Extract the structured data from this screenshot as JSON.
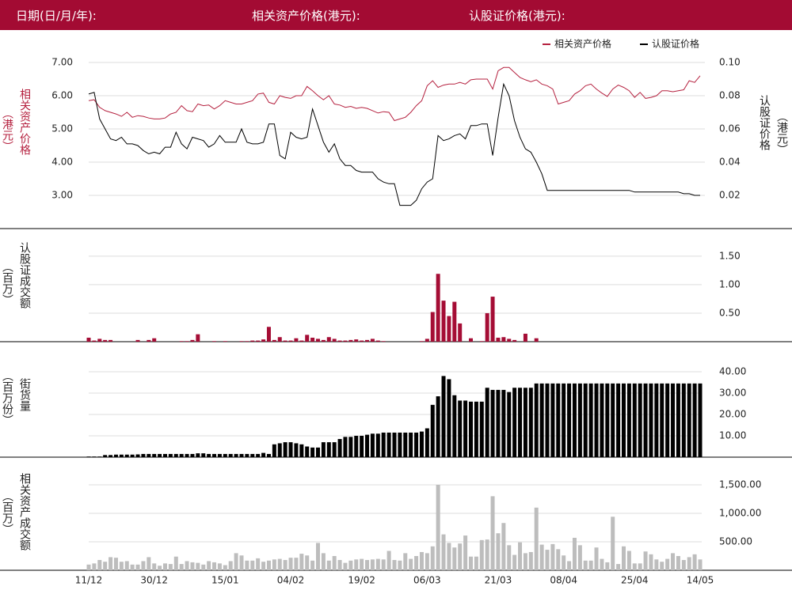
{
  "header": {
    "date_label": "日期(日/月/年):",
    "asset_price_label": "相关资产价格(港元):",
    "warrant_price_label": "认股证价格(港元):"
  },
  "chart_data": [
    {
      "type": "line",
      "y_label": [
        "相关资产价格",
        "（港元）"
      ],
      "y2_label": [
        "认股证价格",
        "（港元）"
      ],
      "series": [
        {
          "name": "相关资产价格",
          "color": "#b5213f",
          "values": [
            5.85,
            5.88,
            5.65,
            5.55,
            5.5,
            5.45,
            5.38,
            5.5,
            5.35,
            5.4,
            5.38,
            5.33,
            5.3,
            5.3,
            5.33,
            5.45,
            5.5,
            5.7,
            5.55,
            5.52,
            5.75,
            5.7,
            5.72,
            5.6,
            5.7,
            5.85,
            5.8,
            5.75,
            5.75,
            5.8,
            5.85,
            6.05,
            6.08,
            5.8,
            5.75,
            6.0,
            5.95,
            5.92,
            6.0,
            6.0,
            6.28,
            6.15,
            6.0,
            5.88,
            6.0,
            5.75,
            5.72,
            5.65,
            5.68,
            5.62,
            5.65,
            5.62,
            5.55,
            5.48,
            5.52,
            5.5,
            5.25,
            5.3,
            5.35,
            5.5,
            5.7,
            5.85,
            6.3,
            6.45,
            6.25,
            6.32,
            6.35,
            6.35,
            6.4,
            6.35,
            6.48,
            6.5,
            6.5,
            6.5,
            6.2,
            6.75,
            6.85,
            6.85,
            6.7,
            6.55,
            6.48,
            6.42,
            6.48,
            6.35,
            6.3,
            6.2,
            5.75,
            5.8,
            5.85,
            6.05,
            6.15,
            6.3,
            6.35,
            6.2,
            6.08,
            5.98,
            6.2,
            6.32,
            6.25,
            6.15,
            5.95,
            6.1,
            5.92,
            5.95,
            6.0,
            6.15,
            6.15,
            6.12,
            6.15,
            6.18,
            6.45,
            6.4,
            6.6
          ]
        },
        {
          "name": "认股证价格",
          "color": "#000000",
          "axis": "y2",
          "values": [
            0.081,
            0.082,
            0.066,
            0.06,
            0.054,
            0.053,
            0.055,
            0.051,
            0.051,
            0.05,
            0.047,
            0.045,
            0.046,
            0.045,
            0.049,
            0.049,
            0.058,
            0.051,
            0.048,
            0.055,
            0.054,
            0.053,
            0.049,
            0.051,
            0.056,
            0.052,
            0.052,
            0.052,
            0.06,
            0.052,
            0.051,
            0.051,
            0.052,
            0.063,
            0.063,
            0.044,
            0.042,
            0.058,
            0.055,
            0.054,
            0.055,
            0.072,
            0.062,
            0.052,
            0.046,
            0.051,
            0.042,
            0.038,
            0.038,
            0.035,
            0.034,
            0.034,
            0.034,
            0.03,
            0.028,
            0.027,
            0.027,
            0.014,
            0.014,
            0.014,
            0.017,
            0.024,
            0.028,
            0.03,
            0.056,
            0.053,
            0.054,
            0.056,
            0.057,
            0.054,
            0.062,
            0.062,
            0.063,
            0.063,
            0.044,
            0.067,
            0.087,
            0.08,
            0.065,
            0.055,
            0.048,
            0.046,
            0.04,
            0.033,
            0.023,
            0.023,
            0.023,
            0.023,
            0.023,
            0.023,
            0.023,
            0.023,
            0.023,
            0.023,
            0.023,
            0.023,
            0.023,
            0.023,
            0.023,
            0.023,
            0.022,
            0.022,
            0.022,
            0.022,
            0.022,
            0.022,
            0.022,
            0.022,
            0.022,
            0.021,
            0.021,
            0.02,
            0.02
          ]
        }
      ],
      "ylim": [
        2.0,
        7.81
      ],
      "yticks": [
        {
          "value": 3,
          "label": "3.00"
        },
        {
          "value": 4,
          "label": "4.00"
        },
        {
          "value": 5,
          "label": "5.00"
        },
        {
          "value": 6,
          "label": "6.00"
        },
        {
          "value": 7,
          "label": "7.00"
        }
      ],
      "y2lim": [
        0,
        0.1162
      ],
      "y2ticks": [
        0.02,
        0.04,
        0.06,
        0.08,
        {
          "value": 0.1,
          "label": "0.10"
        }
      ],
      "grid": true,
      "legend": "top-right"
    },
    {
      "type": "bar",
      "y_label": [
        "认股证成交额",
        "（百万）"
      ],
      "color": "#a50d35",
      "yaxis_side": "right",
      "grid": true,
      "values": [
        0.07,
        0.02,
        0.05,
        0.03,
        0.03,
        0,
        0,
        0,
        0,
        0.03,
        0,
        0.03,
        0.06,
        0,
        0,
        0,
        0,
        0.01,
        0.01,
        0.03,
        0.13,
        0,
        0,
        0.01,
        0,
        0.01,
        0,
        0,
        0.01,
        0.01,
        0.02,
        0.02,
        0.04,
        0.26,
        0.03,
        0.08,
        0.02,
        0.02,
        0.06,
        0.02,
        0.12,
        0.07,
        0.05,
        0.03,
        0.08,
        0.05,
        0.02,
        0.02,
        0.03,
        0.04,
        0.02,
        0.03,
        0.05,
        0.02,
        0.01,
        0,
        0,
        0,
        0,
        0,
        0,
        0.01,
        0.05,
        0.52,
        1.19,
        0.72,
        0.45,
        0.7,
        0.32,
        0,
        0.06,
        0,
        0.01,
        0.5,
        0.79,
        0.07,
        0.08,
        0.05,
        0.03,
        0,
        0.14,
        0,
        0.06,
        0,
        0,
        0,
        0,
        0,
        0,
        0,
        0,
        0,
        0,
        0,
        0,
        0,
        0,
        0,
        0,
        0,
        0,
        0,
        0,
        0,
        0,
        0,
        0,
        0,
        0,
        0,
        0,
        0,
        0
      ],
      "ylim": [
        0,
        1.97
      ],
      "yticks": [
        {
          "value": 0.5,
          "label": "0.50"
        },
        {
          "value": 1,
          "label": "1.00"
        },
        {
          "value": 1.5,
          "label": "1.50"
        }
      ]
    },
    {
      "type": "bar",
      "y_label": [
        "街货量",
        "（百万份）"
      ],
      "color": "#000000",
      "yaxis_side": "right",
      "grid": true,
      "values": [
        0.3,
        0.3,
        0.3,
        1.0,
        1.0,
        1.2,
        1.2,
        1.2,
        1.2,
        1.3,
        1.5,
        1.5,
        1.5,
        1.5,
        1.5,
        1.5,
        1.5,
        1.5,
        1.5,
        1.5,
        1.8,
        1.8,
        1.5,
        1.5,
        1.5,
        1.5,
        1.5,
        1.5,
        1.5,
        1.5,
        1.5,
        1.5,
        2.0,
        1.5,
        6.0,
        6.5,
        7.0,
        7.0,
        6.5,
        6.0,
        5.0,
        4.5,
        4.5,
        7.0,
        7.0,
        7.0,
        8.5,
        9.5,
        9.5,
        10.0,
        10.0,
        10.5,
        11.0,
        11.0,
        11.5,
        11.5,
        11.5,
        11.5,
        11.5,
        11.5,
        11.5,
        12.0,
        13.5,
        24.5,
        28.5,
        38.0,
        36.5,
        29.0,
        26.5,
        26.5,
        26.0,
        26.0,
        26.0,
        32.5,
        31.5,
        31.5,
        31.5,
        30.5,
        32.5,
        32.5,
        32.5,
        32.5,
        34.5,
        34.5,
        34.5,
        34.5,
        34.5,
        34.5,
        34.5,
        34.5,
        34.5,
        34.5,
        34.5,
        34.5,
        34.5,
        34.5,
        34.5,
        34.5,
        34.5,
        34.5,
        34.5,
        34.5,
        34.5,
        34.5,
        34.5,
        34.5,
        34.5,
        34.5,
        34.5,
        34.5,
        34.5,
        34.5,
        34.5
      ],
      "ylim": [
        0,
        53.7
      ],
      "yticks": [
        {
          "value": 10,
          "label": "10.00"
        },
        {
          "value": 20,
          "label": "20.00"
        },
        {
          "value": 30,
          "label": "30.00"
        },
        {
          "value": 40,
          "label": "40.00"
        }
      ]
    },
    {
      "type": "bar",
      "y_label": [
        "相关资产成交额",
        "（百万）"
      ],
      "color": "#bdbdbd",
      "yaxis_side": "right",
      "grid": true,
      "values": [
        100,
        120,
        180,
        150,
        230,
        220,
        150,
        160,
        100,
        100,
        160,
        230,
        120,
        80,
        120,
        110,
        240,
        110,
        160,
        140,
        130,
        100,
        160,
        140,
        120,
        90,
        160,
        300,
        260,
        170,
        170,
        210,
        150,
        170,
        190,
        200,
        180,
        220,
        220,
        290,
        260,
        170,
        480,
        300,
        170,
        250,
        180,
        130,
        170,
        190,
        200,
        180,
        190,
        200,
        190,
        340,
        180,
        170,
        300,
        200,
        250,
        320,
        300,
        420,
        1500,
        630,
        480,
        400,
        470,
        610,
        240,
        240,
        530,
        540,
        1300,
        650,
        830,
        440,
        270,
        490,
        300,
        320,
        1100,
        450,
        360,
        460,
        370,
        260,
        160,
        570,
        440,
        170,
        170,
        400,
        200,
        140,
        940,
        110,
        420,
        340,
        120,
        120,
        330,
        280,
        190,
        150,
        200,
        300,
        250,
        180,
        230,
        280,
        190
      ],
      "ylim": [
        0,
        1972
      ],
      "yticks": [
        {
          "value": 500,
          "label": "500.00"
        },
        {
          "value": 1000,
          "label": "1,000.00"
        },
        {
          "value": 1500,
          "label": "1,500.00"
        }
      ],
      "categories": [
        "11/12",
        null,
        null,
        null,
        null,
        null,
        null,
        null,
        null,
        null,
        null,
        null,
        "30/12",
        null,
        null,
        null,
        null,
        null,
        null,
        null,
        null,
        null,
        null,
        null,
        null,
        "15/01",
        null,
        null,
        null,
        null,
        null,
        null,
        null,
        null,
        null,
        null,
        null,
        "04/02",
        null,
        null,
        null,
        null,
        null,
        null,
        null,
        null,
        null,
        null,
        null,
        null,
        "19/02",
        null,
        null,
        null,
        null,
        null,
        null,
        null,
        null,
        null,
        null,
        null,
        "06/03",
        null,
        null,
        null,
        null,
        null,
        null,
        null,
        null,
        null,
        null,
        null,
        null,
        "21/03",
        null,
        null,
        null,
        null,
        null,
        null,
        null,
        null,
        null,
        null,
        null,
        "08/04",
        null,
        null,
        null,
        null,
        null,
        null,
        null,
        null,
        null,
        null,
        null,
        null,
        "25/04",
        null,
        null,
        null,
        null,
        null,
        null,
        null,
        null,
        null,
        null,
        null,
        "14/05"
      ]
    }
  ]
}
